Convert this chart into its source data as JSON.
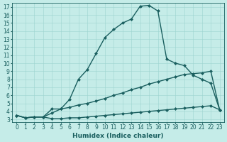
{
  "xlabel": "Humidex (Indice chaleur)",
  "xlim": [
    -0.5,
    23.5
  ],
  "ylim": [
    2.7,
    17.5
  ],
  "xticks": [
    0,
    1,
    2,
    3,
    4,
    5,
    6,
    7,
    8,
    9,
    10,
    11,
    12,
    13,
    14,
    15,
    16,
    17,
    18,
    19,
    20,
    21,
    22,
    23
  ],
  "yticks": [
    3,
    4,
    5,
    6,
    7,
    8,
    9,
    10,
    11,
    12,
    13,
    14,
    15,
    16,
    17
  ],
  "bg_color": "#c5ece8",
  "grid_color": "#9dd4cf",
  "line_color": "#1a5f5f",
  "lines": [
    {
      "x": [
        0,
        1,
        2,
        3,
        4,
        5,
        6,
        7,
        8,
        9,
        10,
        11,
        12,
        13,
        14,
        15,
        16,
        17,
        18,
        19,
        20,
        21,
        22,
        23
      ],
      "y": [
        3.5,
        3.2,
        3.3,
        3.3,
        3.8,
        4.3,
        5.5,
        8.0,
        9.2,
        11.2,
        13.2,
        14.2,
        15.0,
        15.5,
        17.1,
        17.2,
        16.5,
        10.5,
        10.0,
        9.7,
        8.5,
        8.0,
        7.5,
        4.2
      ]
    },
    {
      "x": [
        0,
        1,
        2,
        3,
        4,
        5,
        6,
        7,
        8,
        9,
        10,
        11,
        12,
        13,
        14,
        15,
        16,
        17,
        18,
        19,
        20,
        21,
        22,
        23
      ],
      "y": [
        3.5,
        3.2,
        3.3,
        3.3,
        4.3,
        4.3,
        4.5,
        4.8,
        5.0,
        5.3,
        5.6,
        6.0,
        6.3,
        6.7,
        7.0,
        7.4,
        7.7,
        8.0,
        8.3,
        8.6,
        8.7,
        8.8,
        9.0,
        4.2
      ]
    },
    {
      "x": [
        0,
        1,
        2,
        3,
        4,
        5,
        6,
        7,
        8,
        9,
        10,
        11,
        12,
        13,
        14,
        15,
        16,
        17,
        18,
        19,
        20,
        21,
        22,
        23
      ],
      "y": [
        3.5,
        3.2,
        3.3,
        3.3,
        3.1,
        3.1,
        3.2,
        3.2,
        3.3,
        3.4,
        3.5,
        3.6,
        3.7,
        3.8,
        3.9,
        4.0,
        4.1,
        4.2,
        4.3,
        4.4,
        4.5,
        4.6,
        4.7,
        4.2
      ]
    }
  ],
  "linewidth": 1.0,
  "markersize": 2.5,
  "tick_fontsize": 5.5,
  "xlabel_fontsize": 6.5
}
